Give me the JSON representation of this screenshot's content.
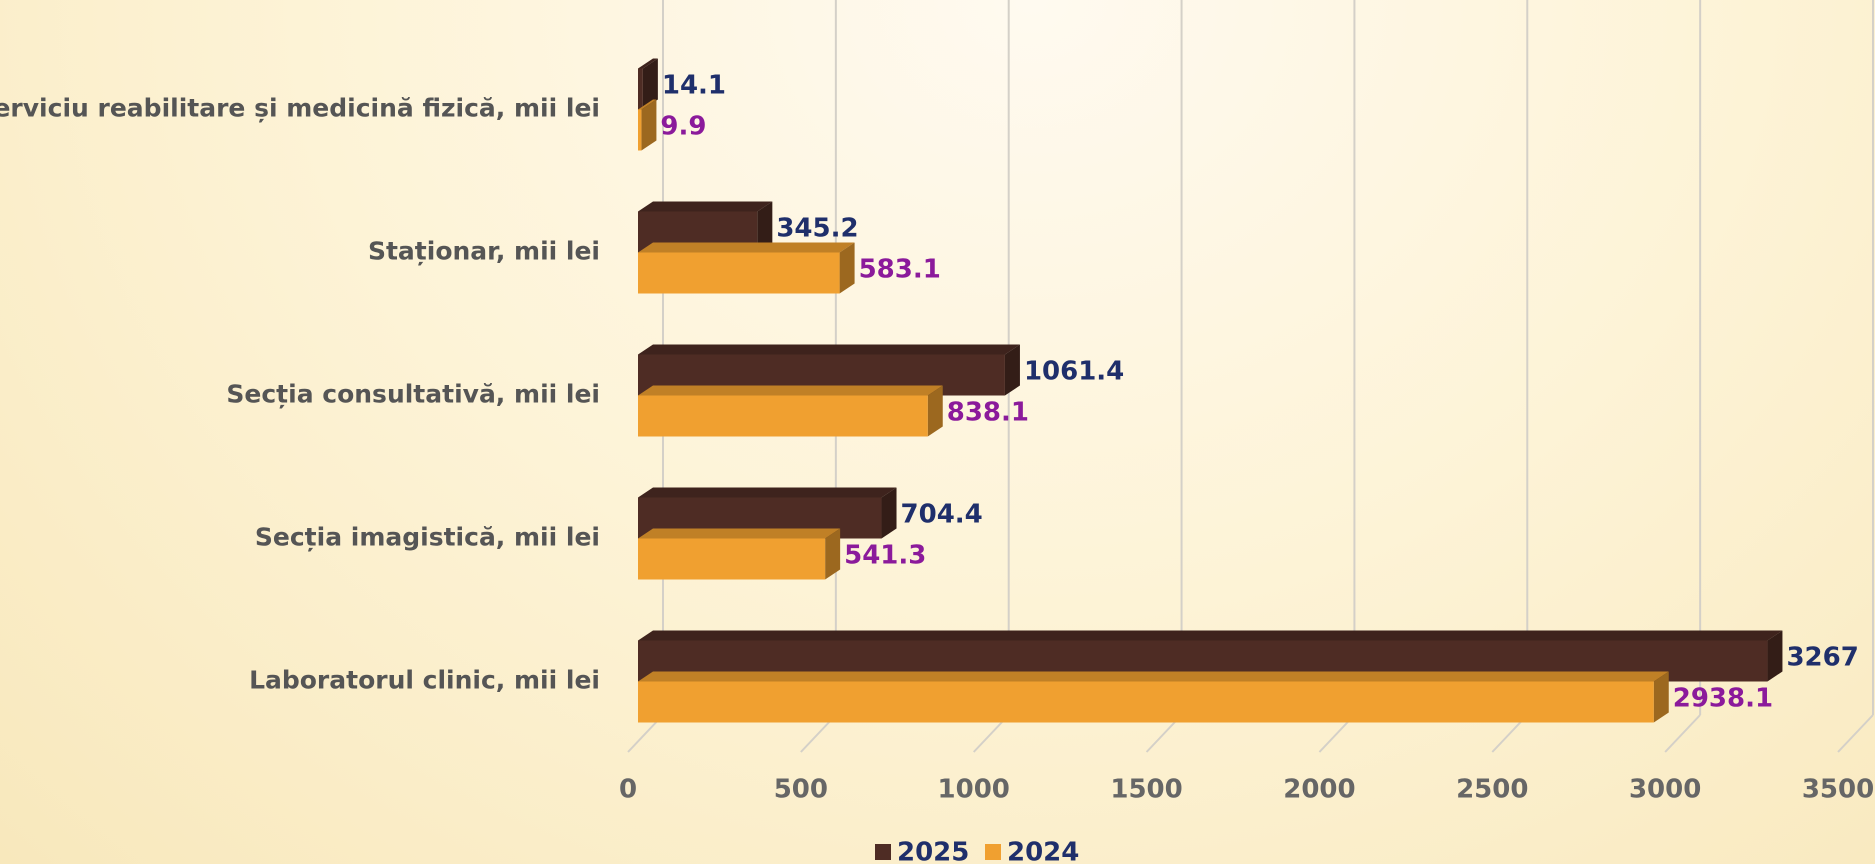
{
  "chart_data": {
    "type": "bar",
    "orientation": "horizontal",
    "categories": [
      "Serviciu reabilitare și medicină fizică, mii lei",
      "Staționar, mii lei",
      "Secția consultativă, mii lei",
      "Secția imagistică, mii lei",
      "Laboratorul clinic, mii lei"
    ],
    "series": [
      {
        "name": "2025",
        "color": "#4e2c24",
        "label_color": "#1f2f6b",
        "values": [
          14.1,
          345.2,
          1061.4,
          704.4,
          3267
        ]
      },
      {
        "name": "2024",
        "color": "#f0a030",
        "label_color": "#8b1a9b",
        "values": [
          9.9,
          583.1,
          838.1,
          541.3,
          2938.1
        ]
      }
    ],
    "xlim": [
      0,
      3500
    ],
    "xticks": [
      0,
      500,
      1000,
      1500,
      2000,
      2500,
      3000,
      3500
    ],
    "grid": true,
    "legend": "bottom"
  }
}
